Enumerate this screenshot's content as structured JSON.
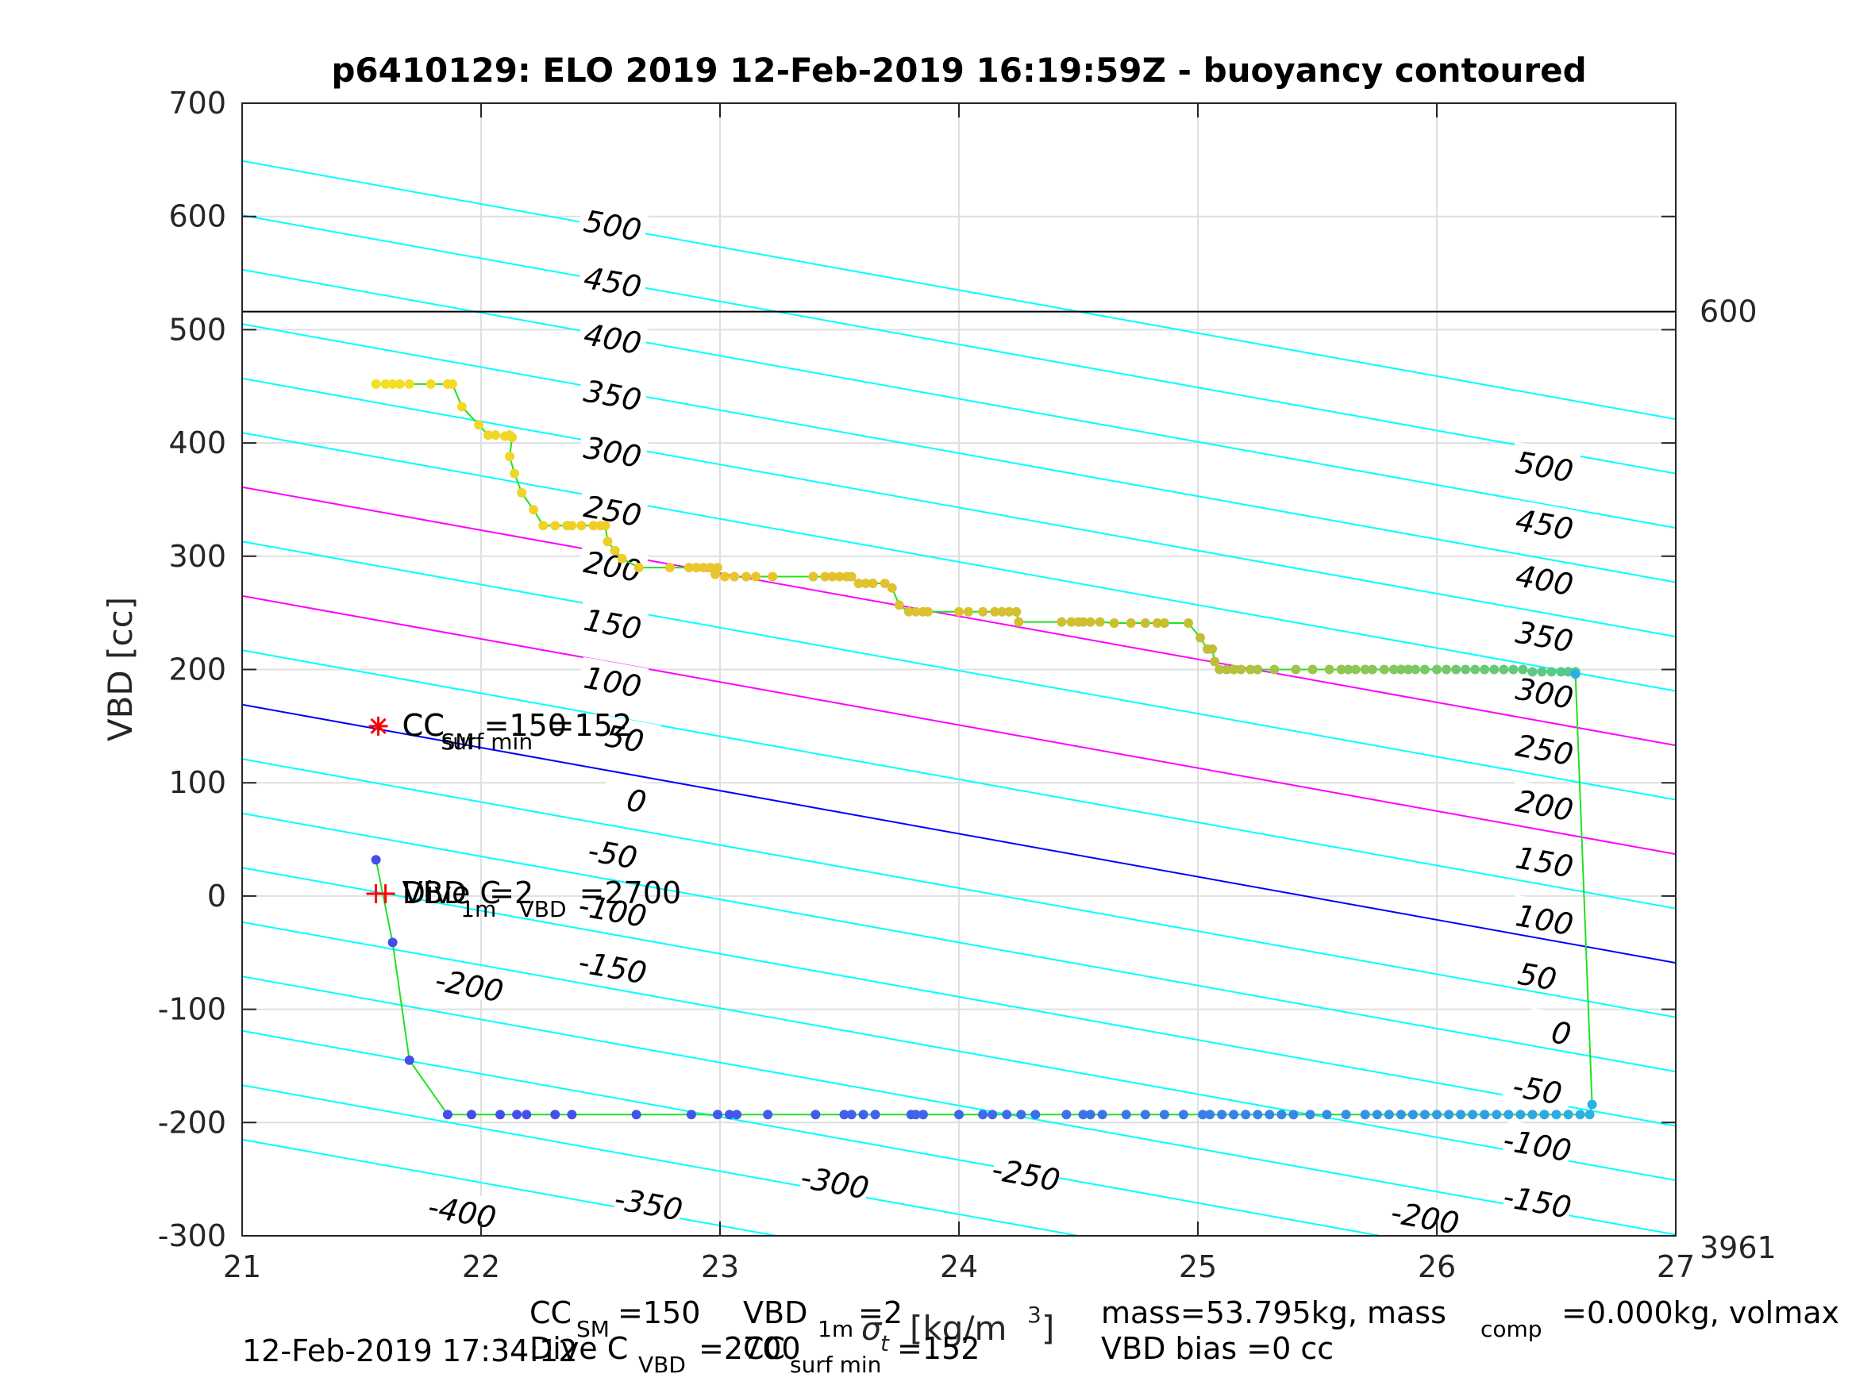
{
  "chart_data": {
    "type": "scatter",
    "title": "p6410129: ELO 2019 12-Feb-2019 16:19:59Z - buoyancy contoured",
    "ylabel": "VBD [cc]",
    "xlabel_sigma": "σ",
    "xlabel_sub": "t",
    "xlabel_units": "[kg/m",
    "xlabel_units_sup": "3",
    "xlabel_units_end": "]",
    "xlim": [
      21,
      27
    ],
    "ylim": [
      -300,
      700
    ],
    "xticks": [
      "21",
      "22",
      "23",
      "24",
      "25",
      "26",
      "27"
    ],
    "yticks": [
      "-300",
      "-200",
      "-100",
      "0",
      "100",
      "200",
      "300",
      "400",
      "500",
      "600",
      "700"
    ],
    "grid": true,
    "reference_line": {
      "y": 516,
      "left_label": "600",
      "right_label": "3961"
    },
    "contours": {
      "slope_cc_per_unit": -38,
      "spacing_cc": 50,
      "zero_intercept_at_21": 169,
      "levels": [
        -400,
        -350,
        -300,
        -250,
        -200,
        -150,
        -100,
        -50,
        0,
        50,
        100,
        150,
        200,
        250,
        300,
        350,
        400,
        450,
        500
      ],
      "colors": {
        "default": "#00ffff",
        "zero": "#0000ff",
        "special": "#ff00ff"
      },
      "special_levels": [
        100,
        200
      ],
      "labels": [
        {
          "text": "500",
          "x": 22.55,
          "y": 591
        },
        {
          "text": "450",
          "x": 22.55,
          "y": 541
        },
        {
          "text": "400",
          "x": 22.55,
          "y": 491
        },
        {
          "text": "350",
          "x": 22.55,
          "y": 441
        },
        {
          "text": "300",
          "x": 22.55,
          "y": 391
        },
        {
          "text": "250",
          "x": 22.55,
          "y": 339
        },
        {
          "text": "200",
          "x": 22.55,
          "y": 290
        },
        {
          "text": "150",
          "x": 22.55,
          "y": 239
        },
        {
          "text": "100",
          "x": 22.55,
          "y": 188
        },
        {
          "text": "50",
          "x": 22.6,
          "y": 138
        },
        {
          "text": "0",
          "x": 22.65,
          "y": 83
        },
        {
          "text": "-50",
          "x": 22.55,
          "y": 36
        },
        {
          "text": "-100",
          "x": 22.55,
          "y": -14
        },
        {
          "text": "-150",
          "x": 22.55,
          "y": -64
        },
        {
          "text": "-200",
          "x": 21.95,
          "y": -80
        },
        {
          "text": "-250",
          "x": 24.28,
          "y": -247
        },
        {
          "text": "-300",
          "x": 23.48,
          "y": -254
        },
        {
          "text": "-350",
          "x": 22.7,
          "y": -273
        },
        {
          "text": "-400",
          "x": 21.92,
          "y": -280
        },
        {
          "text": "500",
          "x": 26.45,
          "y": 378
        },
        {
          "text": "450",
          "x": 26.45,
          "y": 327
        },
        {
          "text": "400",
          "x": 26.45,
          "y": 278
        },
        {
          "text": "350",
          "x": 26.45,
          "y": 228
        },
        {
          "text": "300",
          "x": 26.45,
          "y": 178
        },
        {
          "text": "250",
          "x": 26.45,
          "y": 128
        },
        {
          "text": "200",
          "x": 26.45,
          "y": 79
        },
        {
          "text": "150",
          "x": 26.45,
          "y": 29
        },
        {
          "text": "100",
          "x": 26.45,
          "y": -22
        },
        {
          "text": "50",
          "x": 26.42,
          "y": -72
        },
        {
          "text": "0",
          "x": 26.52,
          "y": -122
        },
        {
          "text": "-50",
          "x": 26.42,
          "y": -172
        },
        {
          "text": "-100",
          "x": 26.42,
          "y": -221
        },
        {
          "text": "-150",
          "x": 26.42,
          "y": -271
        },
        {
          "text": "-200",
          "x": 25.95,
          "y": -285
        }
      ]
    },
    "series": [
      {
        "points": [
          [
            21.56,
            452
          ],
          [
            21.6,
            452
          ],
          [
            21.63,
            452
          ],
          [
            21.66,
            452
          ],
          [
            21.7,
            452
          ],
          [
            21.79,
            452
          ],
          [
            21.86,
            452
          ],
          [
            21.88,
            452
          ],
          [
            21.92,
            432
          ],
          [
            21.99,
            416
          ],
          [
            22.03,
            407
          ],
          [
            22.06,
            407
          ],
          [
            22.1,
            406
          ],
          [
            22.12,
            407
          ],
          [
            22.13,
            405
          ],
          [
            22.12,
            388
          ],
          [
            22.14,
            373
          ],
          [
            22.17,
            356
          ],
          [
            22.22,
            341
          ],
          [
            22.26,
            327
          ],
          [
            22.31,
            327
          ],
          [
            22.36,
            327
          ],
          [
            22.38,
            327
          ],
          [
            22.42,
            327
          ],
          [
            22.47,
            327
          ],
          [
            22.5,
            327
          ],
          [
            22.52,
            327
          ],
          [
            22.53,
            313
          ],
          [
            22.56,
            305
          ],
          [
            22.59,
            298
          ],
          [
            22.66,
            290
          ],
          [
            22.79,
            290
          ],
          [
            22.87,
            290
          ],
          [
            22.9,
            290
          ],
          [
            22.93,
            290
          ],
          [
            22.96,
            290
          ],
          [
            22.99,
            290
          ],
          [
            22.98,
            284
          ],
          [
            23.02,
            282
          ],
          [
            23.06,
            282
          ],
          [
            23.11,
            282
          ],
          [
            23.15,
            282
          ],
          [
            23.22,
            282
          ],
          [
            23.39,
            282
          ],
          [
            23.44,
            282
          ],
          [
            23.47,
            282
          ],
          [
            23.5,
            282
          ],
          [
            23.53,
            282
          ],
          [
            23.55,
            282
          ],
          [
            23.58,
            276
          ],
          [
            23.61,
            276
          ],
          [
            23.64,
            276
          ],
          [
            23.69,
            276
          ],
          [
            23.72,
            272
          ],
          [
            23.75,
            257
          ],
          [
            23.79,
            251
          ],
          [
            23.82,
            251
          ],
          [
            23.85,
            251
          ],
          [
            23.87,
            251
          ],
          [
            24.0,
            251
          ],
          [
            24.04,
            251
          ],
          [
            24.1,
            251
          ],
          [
            24.15,
            251
          ],
          [
            24.18,
            251
          ],
          [
            24.21,
            251
          ],
          [
            24.24,
            251
          ],
          [
            24.25,
            242
          ],
          [
            24.43,
            242
          ],
          [
            24.47,
            242
          ],
          [
            24.5,
            242
          ],
          [
            24.52,
            242
          ],
          [
            24.55,
            242
          ],
          [
            24.59,
            242
          ],
          [
            24.65,
            241
          ],
          [
            24.72,
            241
          ],
          [
            24.78,
            241
          ],
          [
            24.83,
            241
          ],
          [
            24.86,
            241
          ],
          [
            24.96,
            241
          ],
          [
            25.01,
            228
          ],
          [
            25.04,
            218
          ],
          [
            25.06,
            218
          ],
          [
            25.07,
            207
          ],
          [
            25.09,
            200
          ],
          [
            25.12,
            200
          ],
          [
            25.15,
            200
          ],
          [
            25.18,
            200
          ],
          [
            25.22,
            200
          ],
          [
            25.25,
            200
          ],
          [
            25.32,
            200
          ],
          [
            25.41,
            200
          ],
          [
            25.48,
            200
          ],
          [
            25.55,
            200
          ],
          [
            25.6,
            200
          ],
          [
            25.63,
            200
          ],
          [
            25.66,
            200
          ],
          [
            25.7,
            200
          ],
          [
            25.73,
            200
          ],
          [
            25.78,
            200
          ],
          [
            25.82,
            200
          ],
          [
            25.85,
            200
          ],
          [
            25.88,
            200
          ],
          [
            25.91,
            200
          ],
          [
            25.95,
            200
          ],
          [
            26.0,
            200
          ],
          [
            26.04,
            200
          ],
          [
            26.08,
            200
          ],
          [
            26.12,
            200
          ],
          [
            26.16,
            200
          ],
          [
            26.2,
            200
          ],
          [
            26.24,
            200
          ],
          [
            26.28,
            200
          ],
          [
            26.32,
            200
          ],
          [
            26.36,
            200
          ],
          [
            26.4,
            198
          ],
          [
            26.44,
            198
          ],
          [
            26.48,
            198
          ],
          [
            26.52,
            198
          ],
          [
            26.55,
            198
          ],
          [
            26.58,
            198
          ]
        ]
      },
      {
        "points": [
          [
            26.58,
            196
          ],
          [
            26.65,
            -184
          ],
          [
            26.64,
            -193
          ],
          [
            26.6,
            -193
          ],
          [
            26.55,
            -193
          ],
          [
            26.5,
            -193
          ],
          [
            26.45,
            -193
          ],
          [
            26.4,
            -193
          ],
          [
            26.35,
            -193
          ],
          [
            26.3,
            -193
          ],
          [
            26.25,
            -193
          ],
          [
            26.2,
            -193
          ],
          [
            26.15,
            -193
          ],
          [
            26.1,
            -193
          ],
          [
            26.05,
            -193
          ],
          [
            26.0,
            -193
          ],
          [
            25.95,
            -193
          ],
          [
            25.9,
            -193
          ],
          [
            25.85,
            -193
          ],
          [
            25.8,
            -193
          ],
          [
            25.75,
            -193
          ],
          [
            25.7,
            -193
          ],
          [
            25.62,
            -193
          ],
          [
            25.54,
            -193
          ],
          [
            25.47,
            -193
          ],
          [
            25.4,
            -193
          ],
          [
            25.35,
            -193
          ],
          [
            25.3,
            -193
          ],
          [
            25.25,
            -193
          ],
          [
            25.2,
            -193
          ],
          [
            25.15,
            -193
          ],
          [
            25.1,
            -193
          ],
          [
            25.05,
            -193
          ],
          [
            25.02,
            -193
          ],
          [
            24.94,
            -193
          ],
          [
            24.86,
            -193
          ],
          [
            24.78,
            -193
          ],
          [
            24.7,
            -193
          ],
          [
            24.6,
            -193
          ],
          [
            24.55,
            -193
          ],
          [
            24.52,
            -193
          ],
          [
            24.45,
            -193
          ],
          [
            24.32,
            -193
          ],
          [
            24.26,
            -193
          ],
          [
            24.2,
            -193
          ],
          [
            24.14,
            -193
          ],
          [
            24.1,
            -193
          ],
          [
            24.0,
            -193
          ],
          [
            23.85,
            -193
          ],
          [
            23.82,
            -193
          ],
          [
            23.8,
            -193
          ],
          [
            23.65,
            -193
          ],
          [
            23.6,
            -193
          ],
          [
            23.55,
            -193
          ],
          [
            23.52,
            -193
          ],
          [
            23.4,
            -193
          ],
          [
            23.2,
            -193
          ],
          [
            23.07,
            -193
          ],
          [
            23.04,
            -193
          ],
          [
            22.99,
            -193
          ],
          [
            22.88,
            -193
          ],
          [
            22.65,
            -193
          ],
          [
            22.38,
            -193
          ],
          [
            22.31,
            -193
          ],
          [
            22.19,
            -193
          ],
          [
            22.15,
            -193
          ],
          [
            22.08,
            -193
          ],
          [
            21.96,
            -193
          ],
          [
            21.86,
            -193
          ],
          [
            21.7,
            -145
          ],
          [
            21.63,
            -41
          ],
          [
            21.56,
            32
          ]
        ]
      }
    ],
    "markers": [
      {
        "symbol": "star",
        "x": 21.57,
        "y": 150,
        "color": "#ff0000"
      },
      {
        "symbol": "plus",
        "x": 21.56,
        "y": 2,
        "color": "#ff0000"
      },
      {
        "symbol": "plus",
        "x": 21.6,
        "y": 2,
        "color": "#ff0000"
      }
    ],
    "annotations": {
      "cc_sm": {
        "main": "CC",
        "sub": "SM",
        "value": "=150",
        "x": 21.67,
        "y": 150
      },
      "cc_surf": {
        "main": "CC",
        "sub": "surf min",
        "value": "=152",
        "x": 21.67,
        "y": 150
      },
      "vbd_1m": {
        "main": "VBD",
        "sub": "1m",
        "value": "=2",
        "x": 21.67,
        "y": 2
      },
      "dive_c": {
        "main": "Dive C",
        "sub": "VBD",
        "value": "=2700",
        "x": 21.67,
        "y": 2
      }
    }
  },
  "footer": {
    "timestamp": "12-Feb-2019 17:34:12",
    "cc_sm_main": "CC",
    "cc_sm_sub": "SM",
    "cc_sm_value": "=150",
    "vbd_1m_main": "VBD",
    "vbd_1m_sub": "1m",
    "vbd_1m_value": "=2",
    "dive_c_main": "Dive C",
    "dive_c_sub": "VBD",
    "dive_c_value": "=2700",
    "cc_surf_main": "CC",
    "cc_surf_sub": "surf min",
    "cc_surf_value": "=152",
    "mass_text": "mass=53.795kg, mass",
    "mass_sub": "comp",
    "mass_end": "=0.000kg, volmax",
    "vbd_bias": "VBD bias =0 cc"
  }
}
